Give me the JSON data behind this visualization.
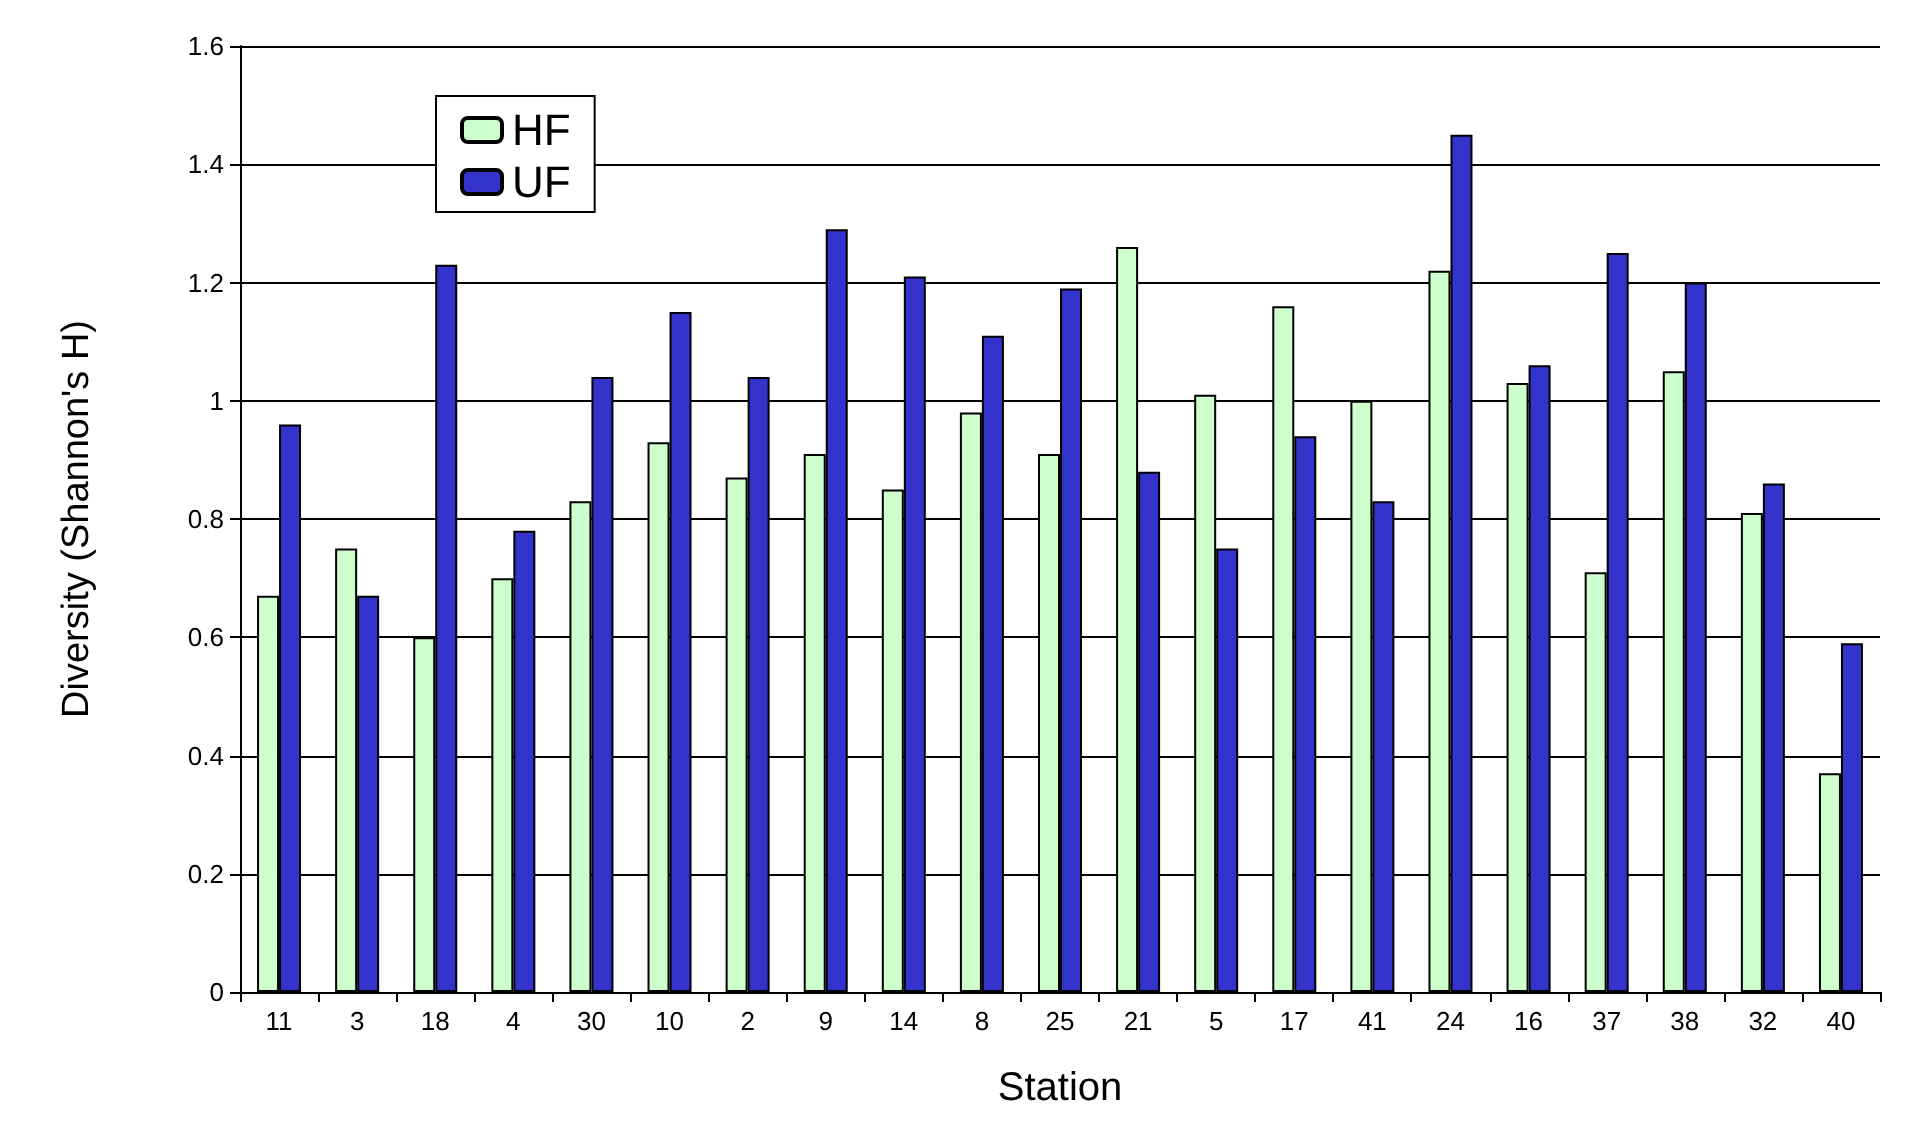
{
  "chart_data": {
    "type": "bar",
    "xlabel": "Station",
    "ylabel": "Diversity (Shannon's H)",
    "categories": [
      "11",
      "3",
      "18",
      "4",
      "30",
      "10",
      "2",
      "9",
      "14",
      "8",
      "25",
      "21",
      "5",
      "17",
      "41",
      "24",
      "16",
      "37",
      "38",
      "32",
      "40"
    ],
    "series": [
      {
        "name": "HF",
        "color": "#ccffcc",
        "values": [
          0.67,
          0.75,
          0.6,
          0.7,
          0.83,
          0.93,
          0.87,
          0.91,
          0.85,
          0.98,
          0.91,
          1.26,
          1.01,
          1.16,
          1.0,
          1.22,
          1.03,
          0.71,
          1.05,
          0.81,
          0.37
        ]
      },
      {
        "name": "UF",
        "color": "#3333cc",
        "values": [
          0.96,
          0.67,
          1.23,
          0.78,
          1.04,
          1.15,
          1.04,
          1.29,
          1.21,
          1.11,
          1.19,
          0.88,
          0.75,
          0.94,
          0.83,
          1.45,
          1.06,
          1.25,
          1.2,
          0.86,
          0.59
        ]
      }
    ],
    "ylim": [
      0,
      1.6
    ],
    "yticks": [
      0,
      0.2,
      0.4,
      0.6,
      0.8,
      1,
      1.2,
      1.4,
      1.6
    ],
    "grid": "y",
    "legend": "top left"
  }
}
